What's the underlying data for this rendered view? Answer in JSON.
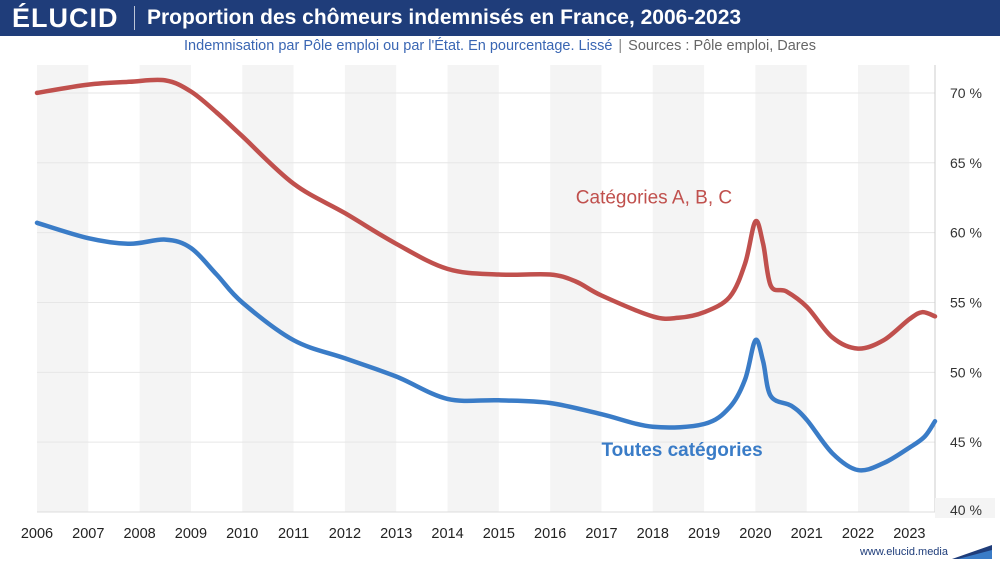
{
  "header": {
    "brand": "ÉLUCID",
    "title": "Proportion des chômeurs indemnisés en France, 2006-2023"
  },
  "subtitle": {
    "text": "Indemnisation par Pôle emploi ou par l'État. En pourcentage. Lissé",
    "separator": "|",
    "sources": "Sources : Pôle emploi, Dares"
  },
  "footer": {
    "url": "www.elucid.media"
  },
  "colors": {
    "header_bg": "#1f3d7a",
    "series_abc": "#c0504d",
    "series_all": "#3a7cc7",
    "band": "#f4f4f4",
    "grid": "#e6e6e6"
  },
  "chart_data": {
    "type": "line",
    "xlim": [
      2006,
      2023.5
    ],
    "ylim": [
      40,
      72
    ],
    "x_ticks": [
      "2006",
      "2007",
      "2008",
      "2009",
      "2010",
      "2011",
      "2012",
      "2013",
      "2014",
      "2015",
      "2016",
      "2017",
      "2018",
      "2019",
      "2020",
      "2021",
      "2022",
      "2023"
    ],
    "y_ticks": [
      "40 %",
      "45 %",
      "50 %",
      "55 %",
      "60 %",
      "65 %",
      "70 %"
    ],
    "y_tick_values": [
      40,
      45,
      50,
      55,
      60,
      65,
      70
    ],
    "grid": true,
    "y_axis_position": "right",
    "series": [
      {
        "name": "Catégories A, B, C",
        "color": "#c0504d",
        "points": [
          [
            2006,
            70.0
          ],
          [
            2007,
            70.6
          ],
          [
            2007.8,
            70.8
          ],
          [
            2008.5,
            70.9
          ],
          [
            2009,
            70.1
          ],
          [
            2009.5,
            68.6
          ],
          [
            2010,
            66.9
          ],
          [
            2011,
            63.5
          ],
          [
            2012,
            61.4
          ],
          [
            2013,
            59.2
          ],
          [
            2014,
            57.4
          ],
          [
            2015,
            57.0
          ],
          [
            2016,
            57.0
          ],
          [
            2016.5,
            56.5
          ],
          [
            2017,
            55.5
          ],
          [
            2018,
            54.0
          ],
          [
            2018.5,
            53.9
          ],
          [
            2019,
            54.3
          ],
          [
            2019.5,
            55.4
          ],
          [
            2019.8,
            57.8
          ],
          [
            2020,
            60.8
          ],
          [
            2020.15,
            59.2
          ],
          [
            2020.3,
            56.2
          ],
          [
            2020.6,
            55.8
          ],
          [
            2021,
            54.7
          ],
          [
            2021.5,
            52.5
          ],
          [
            2022,
            51.7
          ],
          [
            2022.5,
            52.3
          ],
          [
            2023,
            53.8
          ],
          [
            2023.25,
            54.3
          ],
          [
            2023.5,
            54.0
          ]
        ]
      },
      {
        "name": "Toutes catégories",
        "color": "#3a7cc7",
        "points": [
          [
            2006,
            60.7
          ],
          [
            2007,
            59.6
          ],
          [
            2007.8,
            59.2
          ],
          [
            2008.5,
            59.5
          ],
          [
            2009,
            58.9
          ],
          [
            2009.5,
            57.0
          ],
          [
            2010,
            55.0
          ],
          [
            2011,
            52.3
          ],
          [
            2012,
            51.0
          ],
          [
            2013,
            49.7
          ],
          [
            2014,
            48.1
          ],
          [
            2015,
            48.0
          ],
          [
            2016,
            47.8
          ],
          [
            2017,
            47.0
          ],
          [
            2018,
            46.1
          ],
          [
            2019,
            46.3
          ],
          [
            2019.5,
            47.5
          ],
          [
            2019.8,
            49.5
          ],
          [
            2020,
            52.3
          ],
          [
            2020.15,
            50.8
          ],
          [
            2020.3,
            48.3
          ],
          [
            2020.7,
            47.6
          ],
          [
            2021,
            46.6
          ],
          [
            2021.5,
            44.2
          ],
          [
            2022,
            43.0
          ],
          [
            2022.5,
            43.5
          ],
          [
            2023,
            44.6
          ],
          [
            2023.3,
            45.4
          ],
          [
            2023.5,
            46.5
          ]
        ]
      }
    ],
    "annotations": [
      {
        "text": "Catégories A, B, C",
        "x": 2016.5,
        "y": 62.1,
        "color": "#c0504d"
      },
      {
        "text": "Toutes catégories",
        "x": 2017,
        "y": 44.0,
        "color": "#3a7cc7"
      }
    ]
  }
}
